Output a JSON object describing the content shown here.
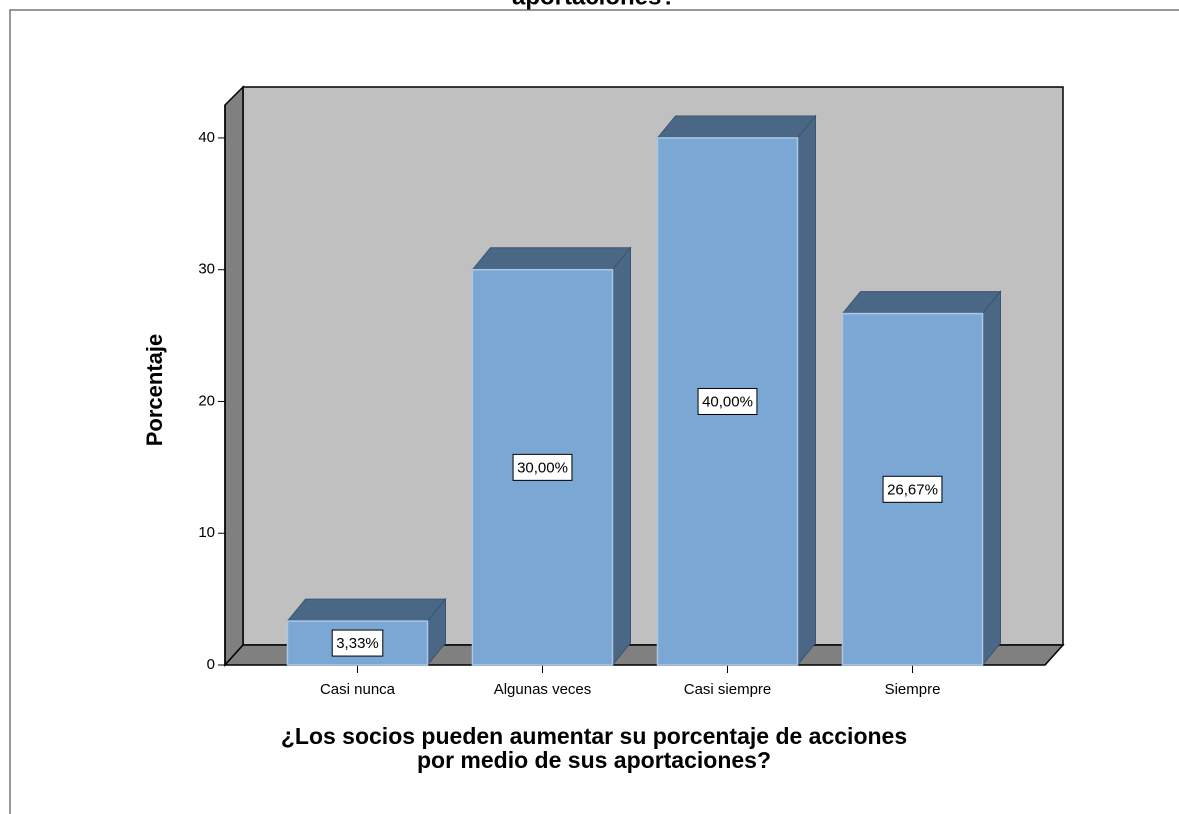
{
  "chart_data": {
    "type": "bar3d",
    "title": "aportaciones?",
    "y_label": "Porcentaje",
    "x_label": [
      "¿Los socios pueden aumentar su porcentaje de acciones",
      "por medio de sus aportaciones?"
    ],
    "categories": [
      "Casi nunca",
      "Algunas veces",
      "Casi siempre",
      "Siempre"
    ],
    "values": [
      3.33,
      30,
      40,
      26.67
    ],
    "value_labels": [
      "3,33%",
      "30,00%",
      "40,00%",
      "26,67%"
    ],
    "color": "#7ba7d4",
    "ylim": [
      0,
      42.5
    ],
    "yticks": [
      0,
      10,
      20,
      30,
      40
    ]
  }
}
